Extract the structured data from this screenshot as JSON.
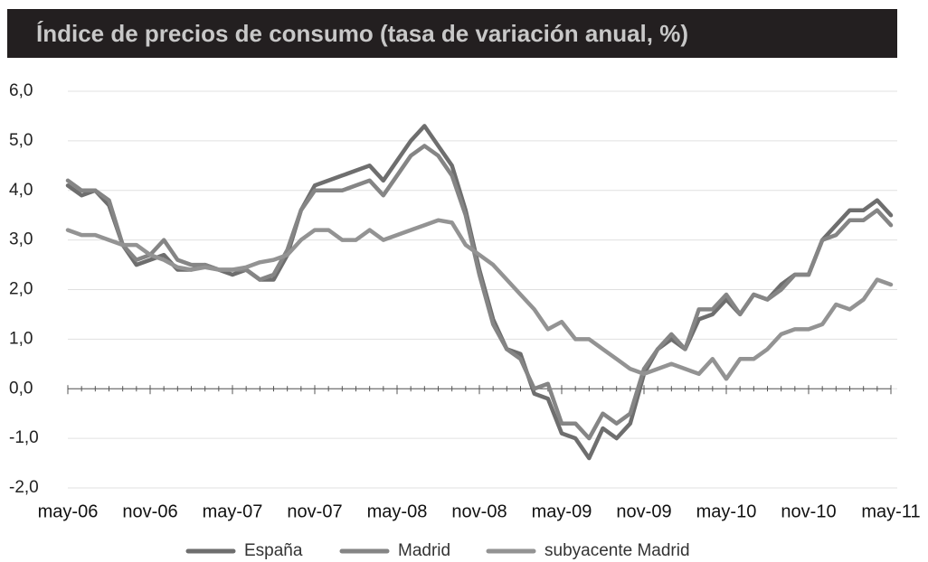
{
  "chart_data": {
    "type": "line",
    "title": "Índice de precios de consumo (tasa de variación anual, %)",
    "categories": [
      "may-06",
      null,
      null,
      null,
      null,
      null,
      "nov-06",
      null,
      null,
      null,
      null,
      null,
      "may-07",
      null,
      null,
      null,
      null,
      null,
      "nov-07",
      null,
      null,
      null,
      null,
      null,
      "may-08",
      null,
      null,
      null,
      null,
      null,
      "nov-08",
      null,
      null,
      null,
      null,
      null,
      "may-09",
      null,
      null,
      null,
      null,
      null,
      "nov-09",
      null,
      null,
      null,
      null,
      null,
      "may-10",
      null,
      null,
      null,
      null,
      null,
      "nov-10",
      null,
      null,
      null,
      null,
      null,
      "may-11"
    ],
    "series": [
      {
        "name": "España",
        "color": "#6e6e6e",
        "values": [
          4.1,
          3.9,
          4.0,
          3.7,
          2.9,
          2.5,
          2.6,
          2.7,
          2.4,
          2.4,
          2.5,
          2.4,
          2.3,
          2.4,
          2.2,
          2.2,
          2.7,
          3.6,
          4.1,
          4.2,
          4.3,
          4.4,
          4.5,
          4.2,
          4.6,
          5.0,
          5.3,
          4.9,
          4.5,
          3.6,
          2.4,
          1.4,
          0.8,
          0.7,
          -0.1,
          -0.2,
          -0.9,
          -1.0,
          -1.4,
          -0.8,
          -1.0,
          -0.7,
          0.3,
          0.8,
          1.0,
          0.8,
          1.4,
          1.5,
          1.8,
          1.5,
          1.9,
          1.8,
          2.1,
          2.3,
          2.3,
          3.0,
          3.3,
          3.6,
          3.6,
          3.8,
          3.5
        ]
      },
      {
        "name": "Madrid",
        "color": "#858585",
        "values": [
          4.2,
          4.0,
          4.0,
          3.8,
          2.9,
          2.6,
          2.7,
          3.0,
          2.6,
          2.5,
          2.5,
          2.4,
          2.4,
          2.4,
          2.2,
          2.3,
          2.8,
          3.6,
          4.0,
          4.0,
          4.0,
          4.1,
          4.2,
          3.9,
          4.3,
          4.7,
          4.9,
          4.7,
          4.3,
          3.5,
          2.3,
          1.3,
          0.8,
          0.6,
          0.0,
          0.1,
          -0.7,
          -0.7,
          -1.0,
          -0.5,
          -0.7,
          -0.5,
          0.4,
          0.8,
          1.1,
          0.8,
          1.6,
          1.6,
          1.9,
          1.5,
          1.9,
          1.8,
          2.0,
          2.3,
          2.3,
          3.0,
          3.1,
          3.4,
          3.4,
          3.6,
          3.3
        ]
      },
      {
        "name": "subyacente Madrid",
        "color": "#939393",
        "values": [
          3.2,
          3.1,
          3.1,
          3.0,
          2.9,
          2.9,
          2.7,
          2.6,
          2.45,
          2.4,
          2.45,
          2.4,
          2.4,
          2.45,
          2.55,
          2.6,
          2.7,
          3.0,
          3.2,
          3.2,
          3.0,
          3.0,
          3.2,
          3.0,
          3.1,
          3.2,
          3.3,
          3.4,
          3.35,
          2.9,
          2.7,
          2.5,
          2.2,
          1.9,
          1.6,
          1.2,
          1.35,
          1.0,
          1.0,
          0.8,
          0.6,
          0.4,
          0.3,
          0.4,
          0.5,
          0.4,
          0.3,
          0.6,
          0.2,
          0.6,
          0.6,
          0.8,
          1.1,
          1.2,
          1.2,
          1.3,
          1.7,
          1.6,
          1.8,
          2.2,
          2.1
        ]
      }
    ],
    "ylim": [
      -2,
      6
    ],
    "yticks": [
      {
        "value": -2,
        "label": "-2,0"
      },
      {
        "value": -1,
        "label": "-1,0"
      },
      {
        "value": 0,
        "label": "0,0"
      },
      {
        "value": 1,
        "label": "1,0"
      },
      {
        "value": 2,
        "label": "2,0"
      },
      {
        "value": 3,
        "label": "3,0"
      },
      {
        "value": 4,
        "label": "4,0"
      },
      {
        "value": 5,
        "label": "5,0"
      },
      {
        "value": 6,
        "label": "6,0"
      }
    ],
    "grid": true,
    "legend": "bottom"
  }
}
